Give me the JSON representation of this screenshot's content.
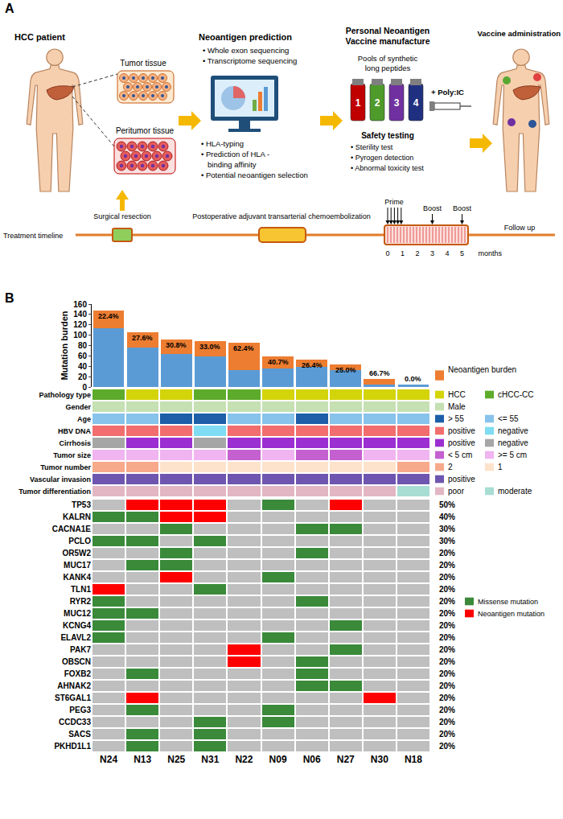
{
  "panel_a": {
    "label": "A",
    "patient": {
      "title": "HCC patient",
      "tissues": [
        "Tumor tissue",
        "Peritumor tissue"
      ]
    },
    "prediction": {
      "title": "Neoantigen prediction",
      "steps_top": [
        "• Whole exon sequencing",
        "• Transcriptome sequencing"
      ],
      "steps_bottom": [
        "• HLA-typing",
        "• Prediction of HLA -",
        "binding affinity",
        "• Potential neoantigen selection"
      ]
    },
    "manufacture": {
      "title": [
        "Personal Neoantigen",
        "Vaccine manufacture"
      ],
      "subtitle": [
        "Pools of synthetic",
        "long peptides"
      ],
      "vials": [
        "1",
        "2",
        "3",
        "4"
      ],
      "adjuvant": "+ Poly:IC",
      "safety_title": "Safety testing",
      "safety_steps": [
        "• Sterility test",
        "• Pyrogen detection",
        "• Abnormal toxicity test"
      ]
    },
    "administration": {
      "title": "Vaccine administration"
    },
    "timeline": {
      "label": "Treatment timeline",
      "surgery": "Surgical resection",
      "tace": "Postoperative adjuvant transarterial chemoembolization",
      "prime": "Prime",
      "boosts": [
        "Boost",
        "Boost"
      ],
      "follow_up": "Follow up",
      "months": [
        0,
        1,
        2,
        3,
        4,
        5
      ],
      "unit": "months"
    }
  },
  "chart_data": {
    "type": "bar",
    "stacked": true,
    "panel_label": "B",
    "categories": [
      "N24",
      "N13",
      "N25",
      "N31",
      "N22",
      "N09",
      "N06",
      "N27",
      "N30",
      "N18"
    ],
    "y_label": "Mutation burden",
    "ylim": [
      0,
      160
    ],
    "yticks": [
      0,
      20,
      40,
      60,
      80,
      100,
      120,
      140,
      160
    ],
    "series": [
      {
        "color": "#5b9bd5",
        "values": [
          114,
          76,
          63,
          59,
          32,
          35,
          39,
          33,
          5,
          4
        ]
      },
      {
        "name": "Neoantigen burden",
        "color": "#ed7d31",
        "values": [
          33,
          29,
          28,
          29,
          53,
          24,
          14,
          11,
          10,
          0
        ],
        "percent_labels": [
          "22.4%",
          "27.6%",
          "30.8%",
          "33.0%",
          "62.4%",
          "40.7%",
          "26.4%",
          "25.0%",
          "66.7%",
          "0.0%"
        ]
      }
    ],
    "annotation_tracks": [
      {
        "name": "Pathology type",
        "values": [
          "cHCC-CC",
          "HCC",
          "HCC",
          "cHCC-CC",
          "cHCC-CC",
          "HCC",
          "HCC",
          "HCC",
          "HCC",
          "HCC"
        ],
        "legend": [
          {
            "label": "HCC",
            "color": "#d4d40a"
          },
          {
            "label": "cHCC-CC",
            "color": "#5dab2a"
          }
        ]
      },
      {
        "name": "Gender",
        "values": [
          "Male",
          "Male",
          "Male",
          "Male",
          "Male",
          "Male",
          "Male",
          "Male",
          "Male",
          "Male"
        ],
        "legend": [
          {
            "label": "Male",
            "color": "#c5e0b3"
          }
        ]
      },
      {
        "name": "Age",
        "values": [
          "<= 55",
          "<= 55",
          "> 55",
          "> 55",
          "<= 55",
          "<= 55",
          "> 55",
          "<= 55",
          "<= 55",
          "<= 55"
        ],
        "legend": [
          {
            "label": "> 55",
            "color": "#1c5ea8"
          },
          {
            "label": "<= 55",
            "color": "#87c3ea"
          }
        ]
      },
      {
        "name": "HBV DNA",
        "values": [
          "positive",
          "positive",
          "positive",
          "negative",
          "positive",
          "positive",
          "positive",
          "positive",
          "positive",
          "positive"
        ],
        "legend": [
          {
            "label": "positive",
            "color": "#f26d6d"
          },
          {
            "label": "negative",
            "color": "#7fdcf2"
          }
        ]
      },
      {
        "name": "Cirrhosis",
        "values": [
          "negative",
          "positive",
          "positive",
          "negative",
          "positive",
          "positive",
          "positive",
          "positive",
          "positive",
          "positive"
        ],
        "legend": [
          {
            "label": "positive",
            "color": "#9b2fd1"
          },
          {
            "label": "negative",
            "color": "#a6a6a6"
          }
        ]
      },
      {
        "name": "Tumor size",
        "values": [
          ">= 5 cm",
          ">= 5 cm",
          ">= 5 cm",
          ">= 5 cm",
          "< 5 cm",
          ">= 5 cm",
          "< 5 cm",
          "< 5 cm",
          ">= 5 cm",
          ">= 5 cm"
        ],
        "legend": [
          {
            "label": "< 5 cm",
            "color": "#c560d0"
          },
          {
            "label": ">= 5 cm",
            "color": "#f0b4f0"
          }
        ]
      },
      {
        "name": "Tumor number",
        "values": [
          "2",
          "2",
          "1",
          "1",
          "1",
          "1",
          "1",
          "1",
          "1",
          "2"
        ],
        "legend": [
          {
            "label": "2",
            "color": "#f7a98b"
          },
          {
            "label": "1",
            "color": "#fde3cc"
          }
        ]
      },
      {
        "name": "Vascular invasion",
        "values": [
          "positive",
          "positive",
          "positive",
          "positive",
          "positive",
          "positive",
          "positive",
          "positive",
          "positive",
          "positive"
        ],
        "legend": [
          {
            "label": "positive",
            "color": "#6e56b0"
          }
        ]
      },
      {
        "name": "Tumor differentiation",
        "values": [
          "poor",
          "poor",
          "poor",
          "poor",
          "poor",
          "poor",
          "poor",
          "poor",
          "poor",
          "moderate"
        ],
        "legend": [
          {
            "label": "poor",
            "color": "#e3b6c4"
          },
          {
            "label": "moderate",
            "color": "#a8ddd3"
          }
        ]
      }
    ],
    "mutation_matrix": {
      "genes": [
        "TP53",
        "KALRN",
        "CACNA1E",
        "PCLO",
        "OR5W2",
        "MUC17",
        "KANK4",
        "TLN1",
        "RYR2",
        "MUC12",
        "KCNG4",
        "ELAVL2",
        "PAK7",
        "OBSCN",
        "FOXB2",
        "AHNAK2",
        "ST6GAL1",
        "PEG3",
        "CCDC33",
        "SACS",
        "PKHD1L1"
      ],
      "frequency_labels": [
        "50%",
        "40%",
        "30%",
        "30%",
        "20%",
        "20%",
        "20%",
        "20%",
        "20%",
        "20%",
        "20%",
        "20%",
        "20%",
        "20%",
        "20%",
        "20%",
        "20%",
        "20%",
        "20%",
        "20%",
        "20%"
      ],
      "levels": [
        {
          "value": 0,
          "color": "#bfbfbf"
        },
        {
          "value": 1,
          "label": "Missense mutation",
          "color": "#3a8a3a"
        },
        {
          "value": 2,
          "label": "Neoantigen mutation",
          "color": "#ff0000"
        }
      ],
      "cells": [
        [
          0,
          2,
          2,
          2,
          0,
          1,
          0,
          2,
          0,
          0
        ],
        [
          1,
          1,
          2,
          2,
          0,
          0,
          0,
          0,
          0,
          0
        ],
        [
          0,
          0,
          1,
          0,
          0,
          0,
          1,
          1,
          0,
          0
        ],
        [
          1,
          1,
          0,
          1,
          0,
          0,
          0,
          0,
          0,
          0
        ],
        [
          0,
          0,
          1,
          0,
          0,
          0,
          1,
          0,
          0,
          0
        ],
        [
          0,
          1,
          1,
          0,
          0,
          0,
          0,
          0,
          0,
          0
        ],
        [
          0,
          0,
          2,
          0,
          0,
          1,
          0,
          0,
          0,
          0
        ],
        [
          2,
          0,
          0,
          1,
          0,
          0,
          0,
          0,
          0,
          0
        ],
        [
          1,
          0,
          0,
          0,
          0,
          0,
          1,
          0,
          0,
          0
        ],
        [
          1,
          1,
          0,
          0,
          0,
          0,
          0,
          0,
          0,
          0
        ],
        [
          1,
          0,
          0,
          0,
          0,
          0,
          0,
          1,
          0,
          0
        ],
        [
          1,
          0,
          0,
          0,
          0,
          1,
          0,
          0,
          0,
          0
        ],
        [
          0,
          0,
          0,
          0,
          2,
          0,
          0,
          1,
          0,
          0
        ],
        [
          0,
          0,
          0,
          0,
          2,
          0,
          1,
          0,
          0,
          0
        ],
        [
          0,
          1,
          0,
          0,
          0,
          0,
          1,
          0,
          0,
          0
        ],
        [
          0,
          0,
          0,
          0,
          0,
          0,
          1,
          1,
          0,
          0
        ],
        [
          0,
          2,
          0,
          0,
          0,
          0,
          0,
          0,
          2,
          0
        ],
        [
          0,
          1,
          0,
          0,
          0,
          1,
          0,
          0,
          0,
          0
        ],
        [
          0,
          0,
          0,
          1,
          0,
          1,
          0,
          0,
          0,
          0
        ],
        [
          0,
          1,
          0,
          1,
          0,
          0,
          0,
          0,
          0,
          0
        ],
        [
          0,
          1,
          0,
          1,
          0,
          0,
          0,
          0,
          0,
          0
        ]
      ]
    }
  }
}
